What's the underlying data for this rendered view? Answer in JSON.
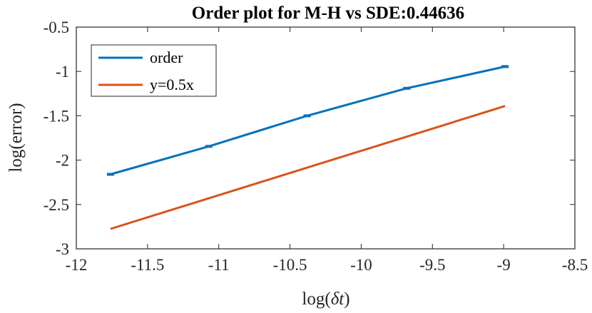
{
  "chart_data": {
    "type": "line",
    "title": "Order plot for M-H vs SDE:0.44636",
    "xlabel": "log(δt)",
    "ylabel": "log(error)",
    "xlim": [
      -12,
      -8.5
    ],
    "ylim": [
      -3,
      -0.5
    ],
    "xticks": [
      -12,
      -11.5,
      -11,
      -10.5,
      -10,
      -9.5,
      -9,
      -8.5
    ],
    "yticks": [
      -3,
      -2.5,
      -2,
      -1.5,
      -1,
      -0.5
    ],
    "xtick_labels": [
      "-12",
      "-11.5",
      "-11",
      "-10.5",
      "-10",
      "-9.5",
      "-9",
      "-8.5"
    ],
    "ytick_labels": [
      "-3",
      "-2.5",
      "-2",
      "-1.5",
      "-1",
      "-0.5"
    ],
    "grid": false,
    "legend_position": "top-left",
    "series": [
      {
        "name": "order",
        "color": "#0072BD",
        "markers": true,
        "x": [
          -11.76,
          -11.07,
          -10.38,
          -9.68,
          -8.99
        ],
        "y": [
          -2.16,
          -1.845,
          -1.5,
          -1.19,
          -0.945
        ]
      },
      {
        "name": "y=0.5x",
        "color": "#D95319",
        "markers": false,
        "x": [
          -11.76,
          -8.99
        ],
        "y": [
          -2.775,
          -1.39
        ]
      }
    ]
  }
}
